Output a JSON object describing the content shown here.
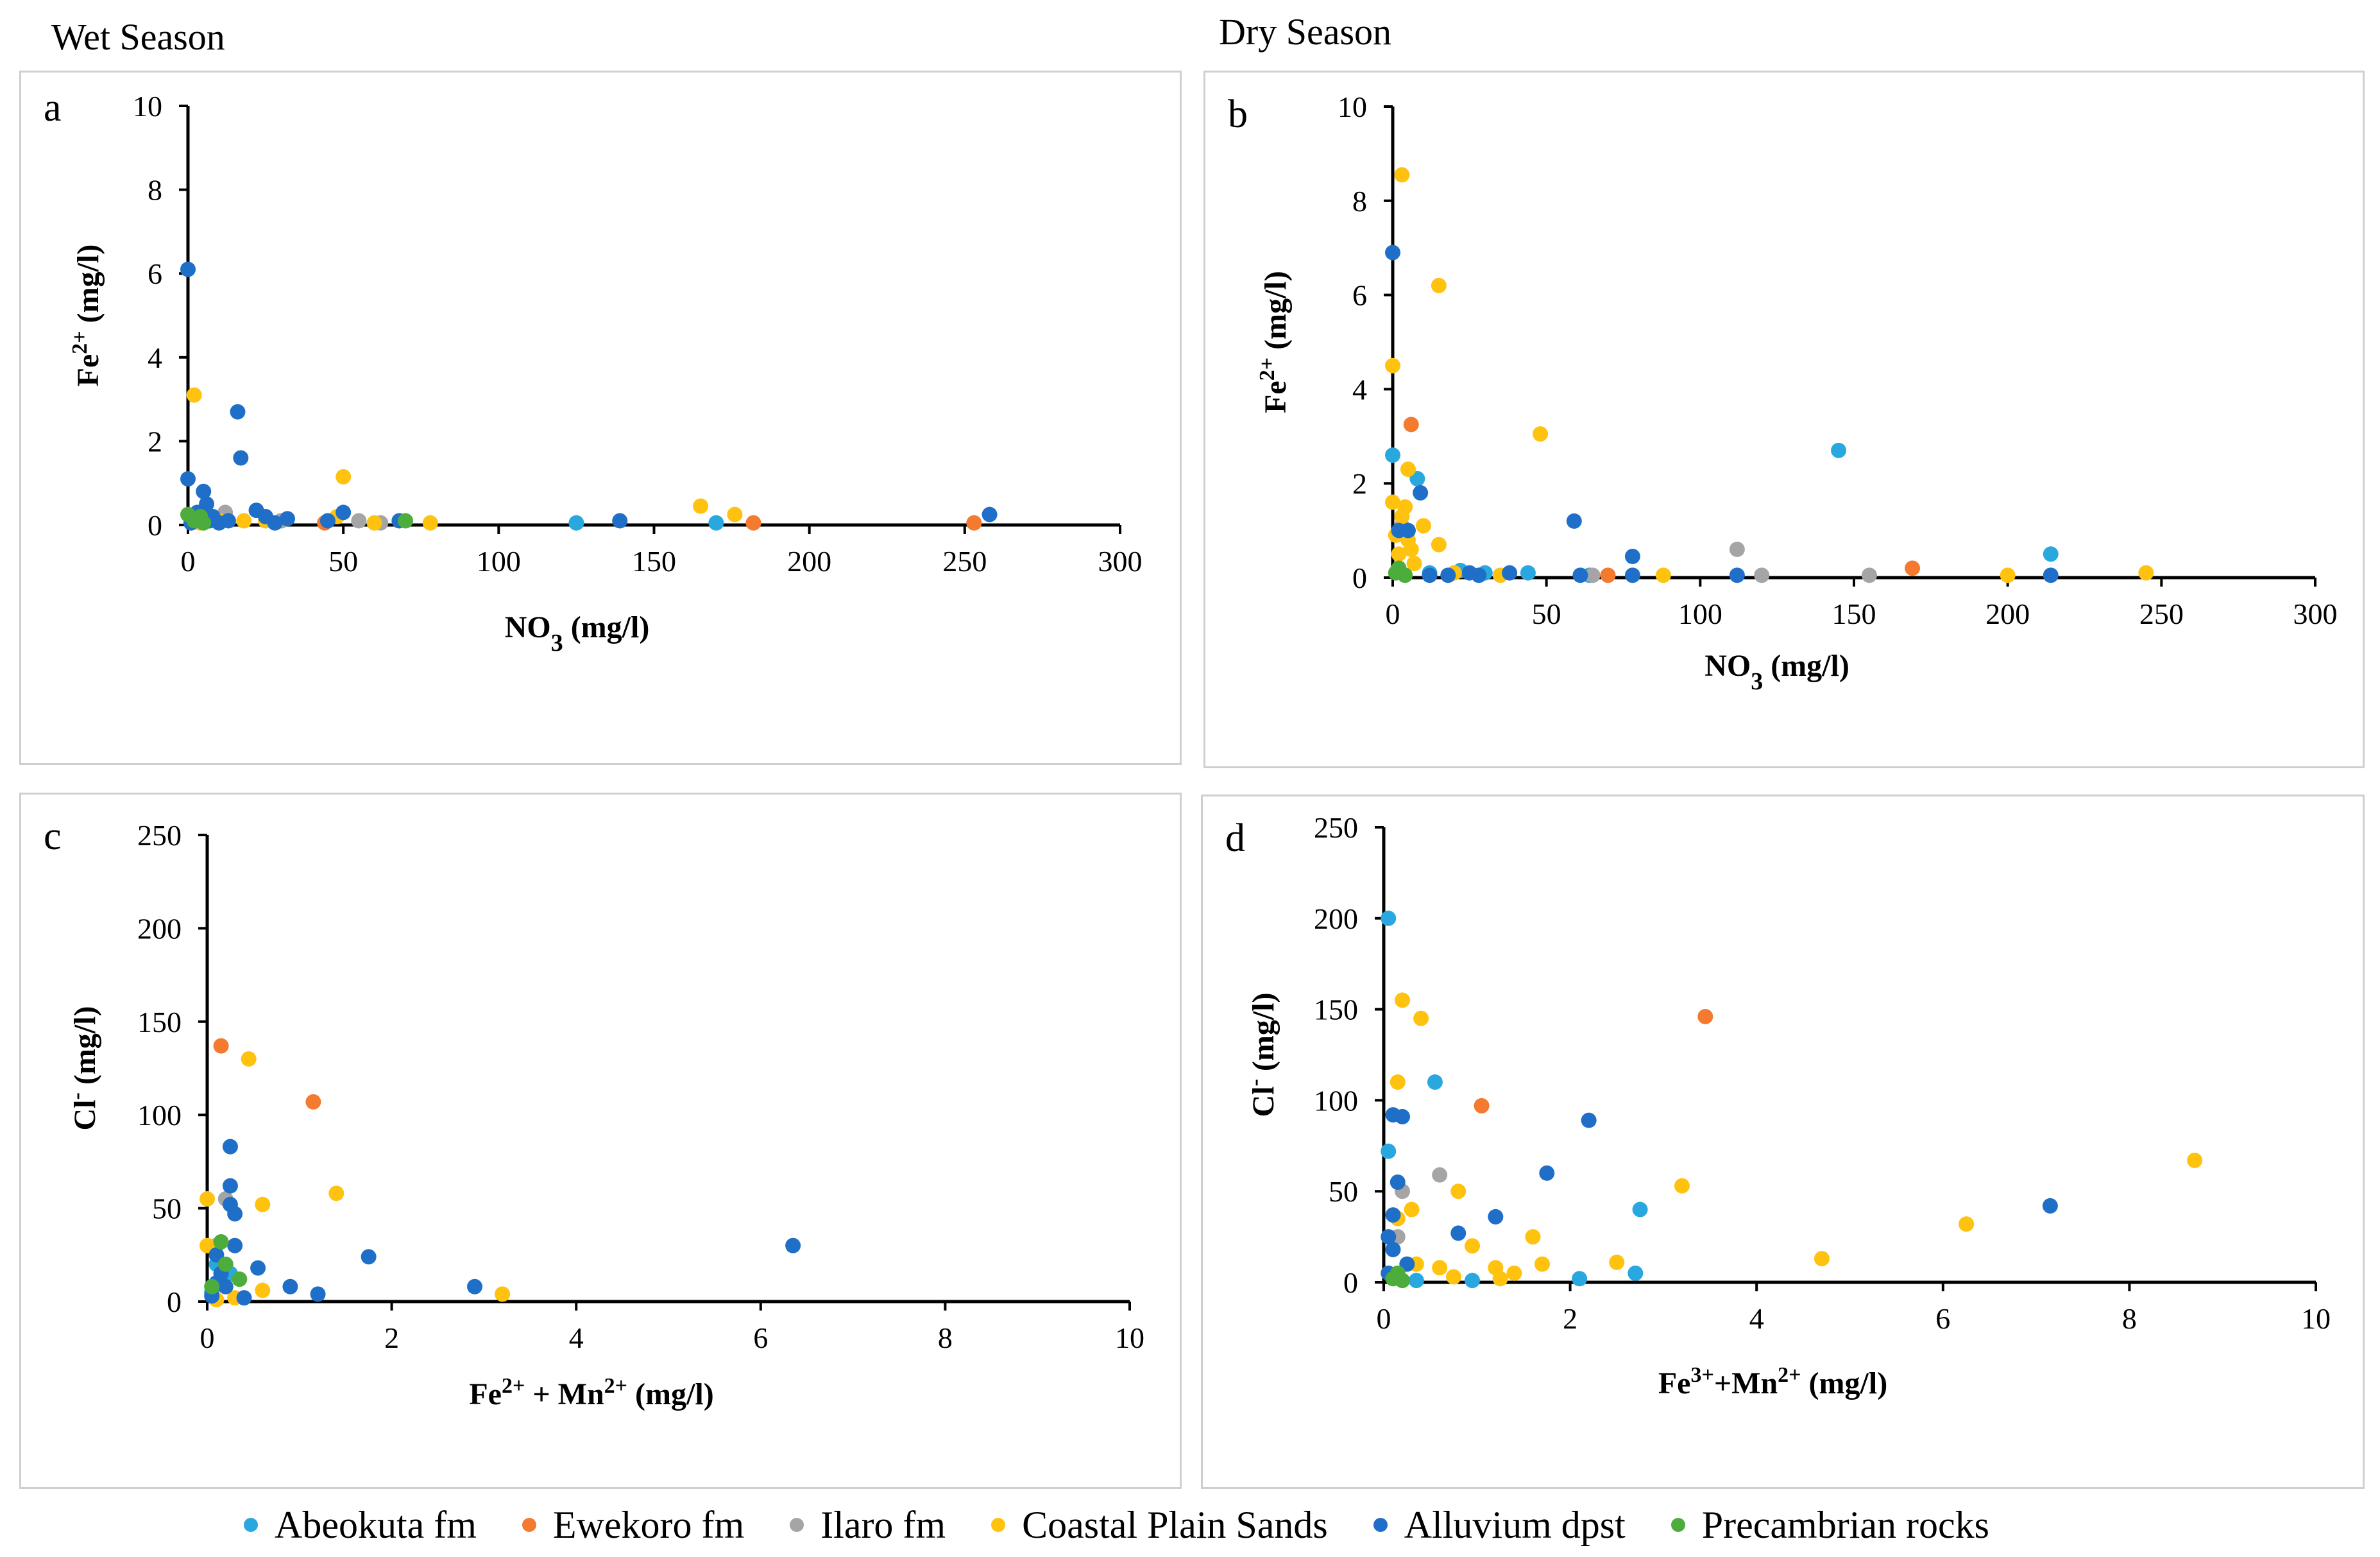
{
  "seasons": {
    "wet": "Wet Season",
    "dry": "Dry Season"
  },
  "colors": {
    "abeokuta": "#29a8e0",
    "ewekoro": "#f47a30",
    "ilaro": "#a5a5a5",
    "coastal": "#ffc20e",
    "alluvium": "#1f6fc8",
    "precambrian": "#4cad3c"
  },
  "legend": [
    {
      "key": "abeokuta",
      "label": "Abeokuta  fm"
    },
    {
      "key": "ewekoro",
      "label": "Ewekoro fm"
    },
    {
      "key": "ilaro",
      "label": "Ilaro fm"
    },
    {
      "key": "coastal",
      "label": "Coastal Plain Sands"
    },
    {
      "key": "alluvium",
      "label": "Alluvium dpst"
    },
    {
      "key": "precambrian",
      "label": "Precambrian rocks"
    }
  ],
  "chart_data": [
    {
      "id": "a",
      "type": "scatter",
      "panel_label": "a",
      "ylabel_parts": [
        "Fe",
        "2+",
        " (mg/l)"
      ],
      "xlabel_parts": [
        "NO",
        "3",
        " (mg/l)"
      ],
      "xlabel_modes": [
        "",
        "sub",
        ""
      ],
      "ylabel_modes": [
        "",
        "sup",
        ""
      ],
      "xlim": [
        0,
        300
      ],
      "ylim": [
        0,
        10
      ],
      "xticks": [
        0,
        50,
        100,
        150,
        200,
        250,
        300
      ],
      "yticks": [
        0,
        2,
        4,
        6,
        8,
        10
      ],
      "series": {
        "abeokuta": [
          [
            2,
            0.1
          ],
          [
            5,
            0.2
          ],
          [
            125,
            0.05
          ],
          [
            170,
            0.05
          ],
          [
            30,
            0.1
          ]
        ],
        "ewekoro": [
          [
            44,
            0.05
          ],
          [
            182,
            0.05
          ],
          [
            253,
            0.05
          ]
        ],
        "ilaro": [
          [
            12,
            0.3
          ],
          [
            30,
            0.1
          ],
          [
            55,
            0.1
          ],
          [
            62,
            0.05
          ]
        ],
        "coastal": [
          [
            2,
            3.1
          ],
          [
            50,
            1.15
          ],
          [
            165,
            0.45
          ],
          [
            176,
            0.25
          ],
          [
            78,
            0.05
          ],
          [
            18,
            0.1
          ],
          [
            25,
            0.1
          ],
          [
            48,
            0.2
          ],
          [
            60,
            0.05
          ],
          [
            4,
            0.05
          ],
          [
            10,
            0.1
          ]
        ],
        "alluvium": [
          [
            0,
            6.1
          ],
          [
            16,
            2.7
          ],
          [
            17,
            1.6
          ],
          [
            0,
            1.1
          ],
          [
            5,
            0.8
          ],
          [
            6,
            0.5
          ],
          [
            3,
            0.3
          ],
          [
            8,
            0.2
          ],
          [
            13,
            0.1
          ],
          [
            22,
            0.35
          ],
          [
            25,
            0.2
          ],
          [
            32,
            0.15
          ],
          [
            45,
            0.1
          ],
          [
            50,
            0.3
          ],
          [
            68,
            0.1
          ],
          [
            139,
            0.1
          ],
          [
            258,
            0.25
          ],
          [
            10,
            0.05
          ],
          [
            28,
            0.05
          ],
          [
            1,
            0.05
          ],
          [
            7,
            0.1
          ]
        ],
        "precambrian": [
          [
            0,
            0.25
          ],
          [
            2,
            0.1
          ],
          [
            5,
            0.05
          ],
          [
            70,
            0.1
          ],
          [
            4,
            0.2
          ]
        ]
      }
    },
    {
      "id": "b",
      "type": "scatter",
      "panel_label": "b",
      "ylabel_parts": [
        "Fe",
        "2+",
        " (mg/l)"
      ],
      "xlabel_parts": [
        "NO",
        "3",
        " (mg/l)"
      ],
      "xlabel_modes": [
        "",
        "sub",
        ""
      ],
      "ylabel_modes": [
        "",
        "sup",
        ""
      ],
      "xlim": [
        0,
        300
      ],
      "ylim": [
        0,
        10
      ],
      "xticks": [
        0,
        50,
        100,
        150,
        200,
        250,
        300
      ],
      "yticks": [
        0,
        2,
        4,
        6,
        8,
        10
      ],
      "series": {
        "abeokuta": [
          [
            0,
            2.6
          ],
          [
            8,
            2.1
          ],
          [
            145,
            2.7
          ],
          [
            214,
            0.5
          ],
          [
            12,
            0.1
          ],
          [
            22,
            0.15
          ],
          [
            30,
            0.1
          ],
          [
            44,
            0.1
          ],
          [
            64,
            0.05
          ]
        ],
        "ewekoro": [
          [
            6,
            3.25
          ],
          [
            169,
            0.2
          ],
          [
            70,
            0.05
          ]
        ],
        "ilaro": [
          [
            112,
            0.6
          ],
          [
            120,
            0.05
          ],
          [
            155,
            0.05
          ],
          [
            65,
            0.05
          ],
          [
            3,
            1.1
          ]
        ],
        "coastal": [
          [
            3,
            8.55
          ],
          [
            15,
            6.2
          ],
          [
            0,
            4.5
          ],
          [
            48,
            3.05
          ],
          [
            5,
            2.3
          ],
          [
            0,
            1.6
          ],
          [
            3,
            1.3
          ],
          [
            10,
            1.1
          ],
          [
            15,
            0.7
          ],
          [
            5,
            0.8
          ],
          [
            2,
            0.5
          ],
          [
            7,
            0.3
          ],
          [
            20,
            0.1
          ],
          [
            35,
            0.05
          ],
          [
            88,
            0.05
          ],
          [
            200,
            0.05
          ],
          [
            245,
            0.1
          ],
          [
            4,
            1.5
          ],
          [
            1,
            0.9
          ],
          [
            6,
            0.6
          ]
        ],
        "alluvium": [
          [
            0,
            6.9
          ],
          [
            9,
            1.8
          ],
          [
            59,
            1.2
          ],
          [
            78,
            0.45
          ],
          [
            2,
            1.0
          ],
          [
            5,
            1.0
          ],
          [
            25,
            0.1
          ],
          [
            38,
            0.1
          ],
          [
            61,
            0.05
          ],
          [
            78,
            0.05
          ],
          [
            112,
            0.05
          ],
          [
            214,
            0.05
          ],
          [
            12,
            0.05
          ],
          [
            28,
            0.05
          ],
          [
            18,
            0.05
          ]
        ],
        "precambrian": [
          [
            1,
            0.1
          ],
          [
            2,
            0.2
          ],
          [
            4,
            0.05
          ]
        ]
      }
    },
    {
      "id": "c",
      "type": "scatter",
      "panel_label": "c",
      "ylabel_parts": [
        "Cl",
        "-",
        " (mg/l)"
      ],
      "xlabel_parts": [
        "Fe",
        "2+",
        " + Mn",
        "2+",
        " (mg/l)"
      ],
      "xlabel_modes": [
        "",
        "sup",
        "",
        "sup",
        ""
      ],
      "ylabel_modes": [
        "",
        "sup",
        ""
      ],
      "xlim": [
        0,
        10
      ],
      "ylim": [
        0,
        250
      ],
      "xticks": [
        0,
        2,
        4,
        6,
        8,
        10
      ],
      "yticks": [
        0,
        50,
        100,
        150,
        200,
        250
      ],
      "series": {
        "abeokuta": [
          [
            0.1,
            20
          ],
          [
            0.15,
            10
          ],
          [
            0.05,
            5
          ],
          [
            0.25,
            15
          ]
        ],
        "ewekoro": [
          [
            0.15,
            137
          ],
          [
            1.15,
            107
          ]
        ],
        "ilaro": [
          [
            0.2,
            55
          ],
          [
            0.1,
            30
          ]
        ],
        "coastal": [
          [
            0.45,
            130
          ],
          [
            1.4,
            58
          ],
          [
            0.6,
            52
          ],
          [
            0,
            55
          ],
          [
            0,
            30
          ],
          [
            3.2,
            4
          ],
          [
            0.6,
            6
          ],
          [
            0.3,
            2
          ],
          [
            0.1,
            1
          ]
        ],
        "alluvium": [
          [
            6.35,
            30
          ],
          [
            2.9,
            8
          ],
          [
            1.75,
            24
          ],
          [
            0.25,
            83
          ],
          [
            0.25,
            62
          ],
          [
            0.25,
            52
          ],
          [
            0.3,
            47
          ],
          [
            0.3,
            30
          ],
          [
            0.55,
            18
          ],
          [
            0.9,
            8
          ],
          [
            1.2,
            4
          ],
          [
            0.4,
            2
          ],
          [
            0.1,
            25
          ],
          [
            0.15,
            15
          ],
          [
            0.2,
            8
          ],
          [
            0.05,
            3
          ],
          [
            0.1,
            10
          ]
        ],
        "precambrian": [
          [
            0.15,
            32
          ],
          [
            0.35,
            12
          ],
          [
            0.05,
            8
          ],
          [
            0.2,
            20
          ]
        ]
      }
    },
    {
      "id": "d",
      "type": "scatter",
      "panel_label": "d",
      "ylabel_parts": [
        "Cl",
        "-",
        "  (mg/l)"
      ],
      "xlabel_parts": [
        "Fe",
        "3+",
        "+Mn",
        "2+",
        " (mg/l)"
      ],
      "xlabel_modes": [
        "",
        "sup",
        "",
        "sup",
        ""
      ],
      "ylabel_modes": [
        "",
        "sup",
        ""
      ],
      "xlim": [
        0,
        10
      ],
      "ylim": [
        0,
        250
      ],
      "xticks": [
        0,
        2,
        4,
        6,
        8,
        10
      ],
      "yticks": [
        0,
        50,
        100,
        150,
        200,
        250
      ],
      "series": {
        "abeokuta": [
          [
            0.05,
            200
          ],
          [
            0.55,
            110
          ],
          [
            0.05,
            72
          ],
          [
            2.75,
            40
          ],
          [
            2.1,
            2
          ],
          [
            2.7,
            5
          ],
          [
            0.35,
            1
          ],
          [
            0.95,
            1
          ]
        ],
        "ewekoro": [
          [
            3.45,
            146
          ],
          [
            1.05,
            97
          ]
        ],
        "ilaro": [
          [
            0.6,
            59
          ],
          [
            0.2,
            50
          ],
          [
            0.15,
            25
          ]
        ],
        "coastal": [
          [
            0.2,
            155
          ],
          [
            0.4,
            145
          ],
          [
            0.15,
            110
          ],
          [
            0.8,
            50
          ],
          [
            1.6,
            25
          ],
          [
            0.95,
            20
          ],
          [
            1.7,
            10
          ],
          [
            3.2,
            53
          ],
          [
            4.7,
            13
          ],
          [
            6.25,
            32
          ],
          [
            8.7,
            67
          ],
          [
            0.3,
            40
          ],
          [
            0.35,
            10
          ],
          [
            0.6,
            8
          ],
          [
            1.2,
            8
          ],
          [
            1.4,
            5
          ],
          [
            2.5,
            11
          ],
          [
            0.75,
            3
          ],
          [
            0.15,
            35
          ],
          [
            1.25,
            2
          ]
        ],
        "alluvium": [
          [
            0.1,
            92
          ],
          [
            0.2,
            91
          ],
          [
            2.2,
            89
          ],
          [
            1.75,
            60
          ],
          [
            1.2,
            36
          ],
          [
            0.8,
            27
          ],
          [
            7.15,
            42
          ],
          [
            0.15,
            55
          ],
          [
            0.1,
            37
          ],
          [
            0.05,
            25
          ],
          [
            0.1,
            18
          ],
          [
            0.25,
            10
          ],
          [
            0.05,
            5
          ]
        ],
        "precambrian": [
          [
            0.1,
            2
          ],
          [
            0.15,
            5
          ],
          [
            0.2,
            1
          ]
        ]
      }
    }
  ]
}
